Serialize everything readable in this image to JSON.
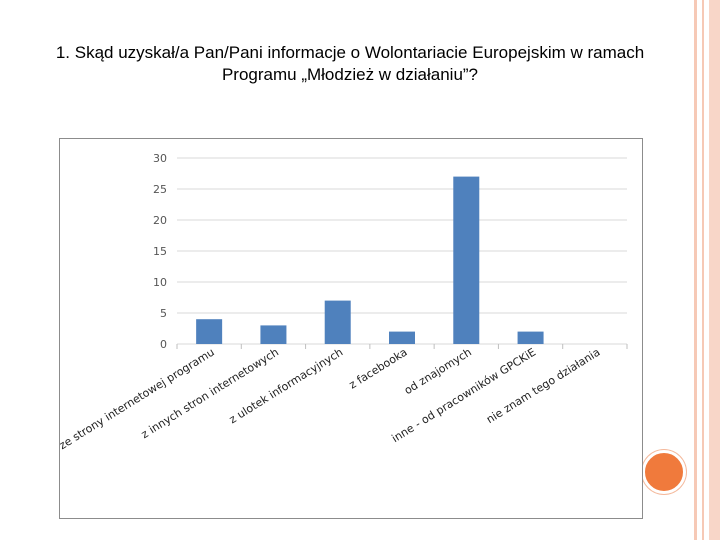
{
  "slide": {
    "title_line1": "1. Skąd uzyskał/a Pan/Pani informacje o Wolontariacie Europejskim w ramach",
    "title_line2": "Programu „Młodzież w działaniu”?"
  },
  "colors": {
    "bar": "#4f81bd",
    "gridline": "#d9d9d9",
    "accent_circle": "#f07a3c",
    "side_stripes": "#f6c9b6"
  },
  "chart_data": {
    "type": "bar",
    "categories": [
      "ze strony internetowej programu",
      "z innych stron internetowych",
      "z ulotek informacyjnych",
      "z facebooka",
      "od znajomych",
      "inne - od pracowników GPCKiE",
      "nie znam tego działania"
    ],
    "values": [
      4,
      3,
      7,
      2,
      27,
      2,
      0
    ],
    "ylim": [
      0,
      30
    ],
    "yticks": [
      0,
      5,
      10,
      15,
      20,
      25,
      30
    ],
    "grid": true,
    "legend": false,
    "title": "",
    "xlabel": "",
    "ylabel": ""
  }
}
